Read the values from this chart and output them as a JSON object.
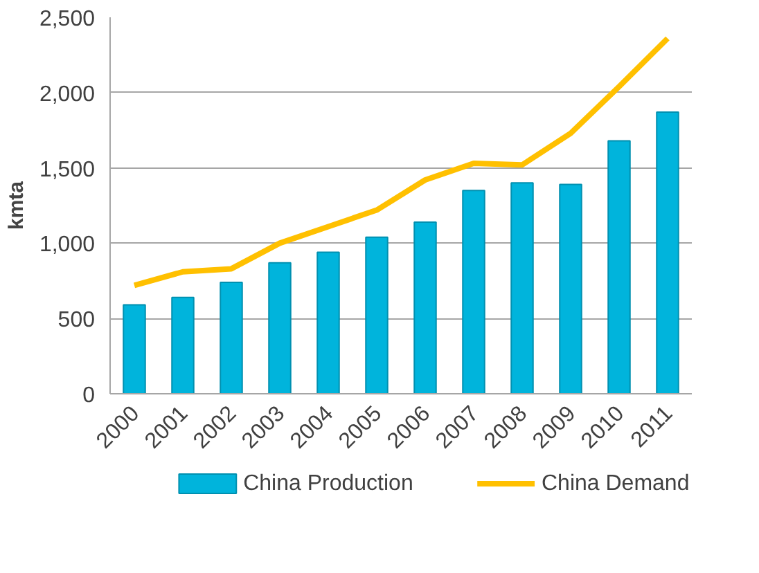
{
  "chart_data": {
    "type": "bar",
    "ylabel": "kmta",
    "categories": [
      "2000",
      "2001",
      "2002",
      "2003",
      "2004",
      "2005",
      "2006",
      "2007",
      "2008",
      "2009",
      "2010",
      "2011"
    ],
    "series": [
      {
        "name": "China Production",
        "color": "#00b4dc",
        "values": [
          590,
          640,
          740,
          870,
          940,
          1040,
          1140,
          1350,
          1400,
          1390,
          1680,
          1870
        ]
      },
      {
        "name": "China Demand",
        "type": "line",
        "color": "#ffc000",
        "values": [
          720,
          810,
          830,
          1000,
          1110,
          1220,
          1420,
          1530,
          1520,
          1730,
          2040,
          2360
        ]
      }
    ],
    "ylim": [
      0,
      2500
    ],
    "yticks": [
      0,
      500,
      {
        "value": 1000,
        "label": "1,000"
      },
      {
        "value": 1500,
        "label": "1,500"
      },
      {
        "value": 2000,
        "label": "2,000"
      },
      {
        "value": 2500,
        "label": "2,500"
      }
    ],
    "grid": "y",
    "legend": "bottom"
  }
}
